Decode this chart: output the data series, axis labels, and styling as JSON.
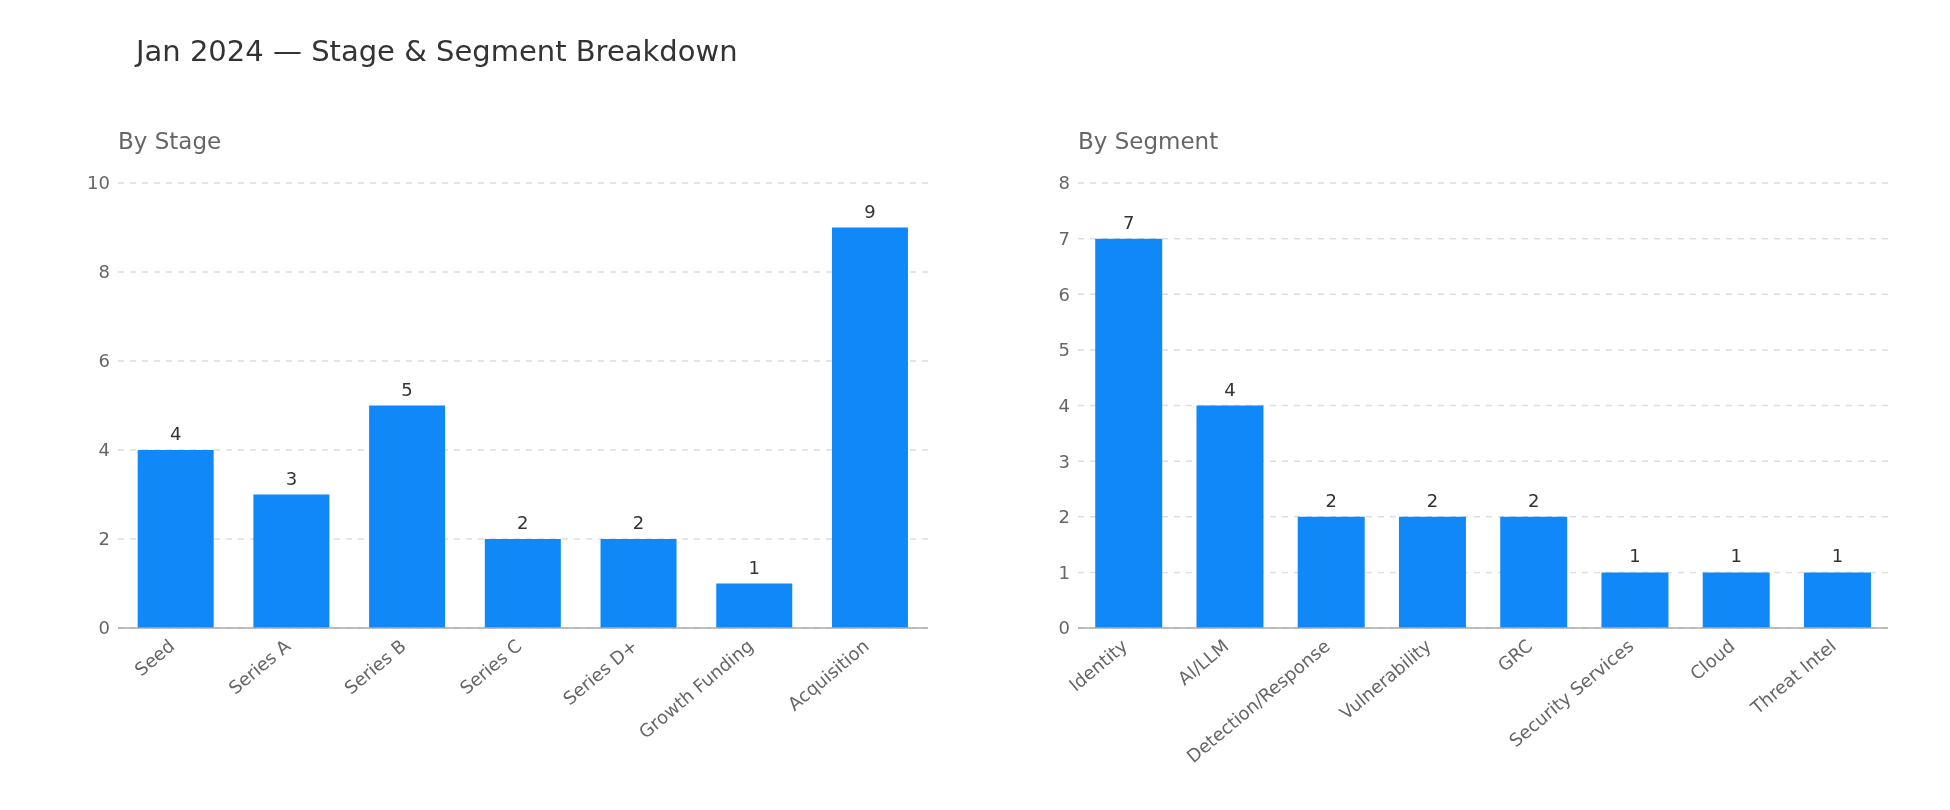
{
  "chart_data": [
    {
      "type": "bar",
      "title": "Jan 2024 — Stage & Segment Breakdown",
      "subtitle": "By Stage",
      "categories": [
        "Seed",
        "Series A",
        "Series B",
        "Series C",
        "Series D+",
        "Growth Funding",
        "Acquisition"
      ],
      "values": [
        4,
        3,
        5,
        2,
        2,
        1,
        9
      ],
      "color": "#1188f7",
      "ylim": [
        0,
        10
      ],
      "yticks": [
        0,
        2,
        4,
        6,
        8,
        10
      ],
      "grid": "y",
      "data_labels": true
    },
    {
      "type": "bar",
      "subtitle": "By Segment",
      "categories": [
        "Identity",
        "AI/LLM",
        "Detection/Response",
        "Vulnerability",
        "GRC",
        "Security Services",
        "Cloud",
        "Threat Intel"
      ],
      "values": [
        7,
        4,
        2,
        2,
        2,
        1,
        1,
        1
      ],
      "color": "#1188f7",
      "ylim": [
        0,
        8
      ],
      "yticks": [
        0,
        1,
        2,
        3,
        4,
        5,
        6,
        7,
        8
      ],
      "grid": "y",
      "data_labels": true
    }
  ]
}
